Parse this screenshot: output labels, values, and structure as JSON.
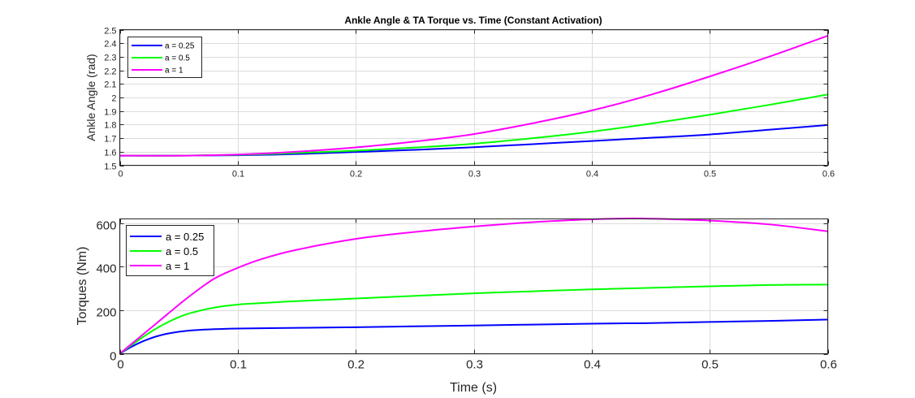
{
  "chart_data": [
    {
      "type": "line",
      "title": "Ankle Angle & TA Torque vs. Time (Constant Activation)",
      "xlabel": "",
      "ylabel": "Ankle Angle (rad)",
      "xlim": [
        0,
        0.6
      ],
      "ylim": [
        1.5,
        2.5
      ],
      "xticks": [
        0,
        0.1,
        0.2,
        0.3,
        0.4,
        0.5,
        0.6
      ],
      "xtick_labels": [
        "0",
        "0.1",
        "0.2",
        "0.3",
        "0.4",
        "0.5",
        "0.6"
      ],
      "yticks": [
        1.5,
        1.6,
        1.7,
        1.8,
        1.9,
        2.0,
        2.1,
        2.2,
        2.3,
        2.4,
        2.5
      ],
      "ytick_labels": [
        "1.5",
        "1.6",
        "1.7",
        "1.8",
        "1.9",
        "2",
        "2.1",
        "2.2",
        "2.3",
        "2.4",
        "2.5"
      ],
      "grid": true,
      "legend_position": "top-left",
      "x": [
        0,
        0.05,
        0.1,
        0.15,
        0.2,
        0.25,
        0.3,
        0.35,
        0.4,
        0.45,
        0.5,
        0.55,
        0.6
      ],
      "series": [
        {
          "name": "a = 0.25",
          "color": "#0000ff",
          "values": [
            1.571,
            1.571,
            1.574,
            1.583,
            1.598,
            1.614,
            1.633,
            1.656,
            1.679,
            1.703,
            1.727,
            1.762,
            1.797
          ]
        },
        {
          "name": "a = 0.5",
          "color": "#00ff00",
          "values": [
            1.571,
            1.571,
            1.577,
            1.591,
            1.608,
            1.631,
            1.659,
            1.7,
            1.748,
            1.807,
            1.873,
            1.945,
            2.022
          ]
        },
        {
          "name": "a = 1",
          "color": "#ff00ff",
          "values": [
            1.571,
            1.571,
            1.579,
            1.6,
            1.632,
            1.675,
            1.73,
            1.81,
            1.904,
            2.02,
            2.155,
            2.3,
            2.455
          ]
        }
      ]
    },
    {
      "type": "line",
      "title": "",
      "xlabel": "Time (s)",
      "ylabel": "Torques (Nm)",
      "xlim": [
        0,
        0.6
      ],
      "ylim": [
        0,
        620
      ],
      "xticks": [
        0,
        0.1,
        0.2,
        0.3,
        0.4,
        0.5,
        0.6
      ],
      "xtick_labels": [
        "0",
        "0.1",
        "0.2",
        "0.3",
        "0.4",
        "0.5",
        "0.6"
      ],
      "yticks": [
        0,
        200,
        400,
        600
      ],
      "ytick_labels": [
        "0",
        "200",
        "400",
        "600"
      ],
      "grid": true,
      "legend_position": "top-left",
      "x": [
        0,
        0.01,
        0.02,
        0.03,
        0.04,
        0.05,
        0.06,
        0.08,
        0.1,
        0.12,
        0.15,
        0.2,
        0.25,
        0.3,
        0.35,
        0.4,
        0.43,
        0.45,
        0.5,
        0.55,
        0.6
      ],
      "series": [
        {
          "name": "a = 0.25",
          "color": "#0000ff",
          "values": [
            0,
            32,
            58,
            78,
            92,
            101,
            107,
            113,
            116,
            117,
            119,
            122,
            126,
            130,
            134,
            138,
            140,
            141,
            146,
            151,
            157
          ]
        },
        {
          "name": "a = 0.5",
          "color": "#00ff00",
          "values": [
            0,
            40,
            78,
            113,
            143,
            168,
            187,
            212,
            226,
            233,
            242,
            254,
            266,
            278,
            287,
            296,
            300,
            303,
            310,
            316,
            318
          ]
        },
        {
          "name": "a = 1",
          "color": "#ff00ff",
          "values": [
            0,
            45,
            90,
            135,
            180,
            225,
            268,
            345,
            395,
            435,
            478,
            528,
            560,
            585,
            605,
            618,
            622,
            621,
            612,
            595,
            563
          ]
        }
      ]
    }
  ]
}
